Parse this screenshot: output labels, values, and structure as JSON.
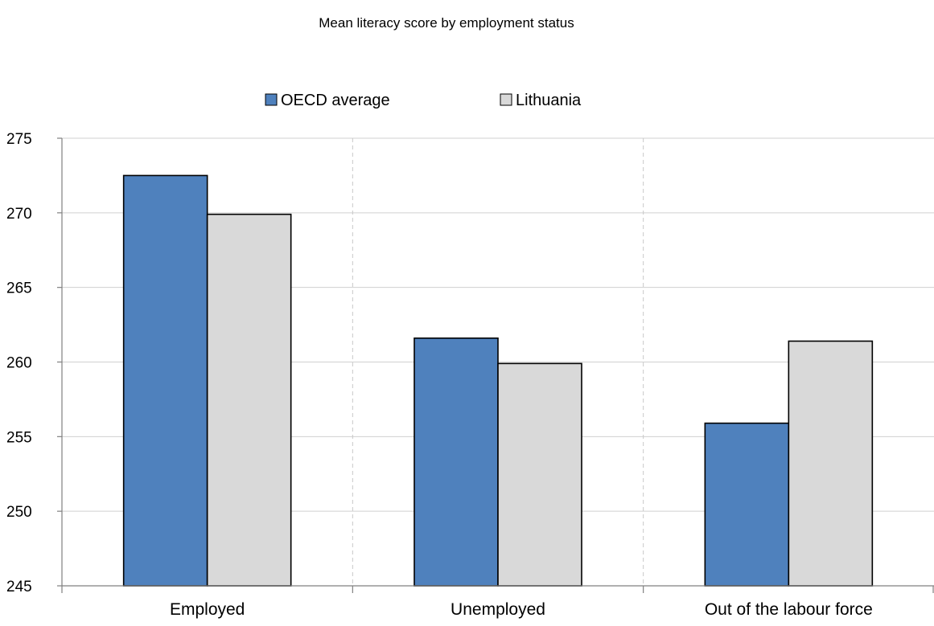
{
  "chart_data": {
    "type": "bar",
    "title": "Mean literacy score by employment status",
    "xlabel": "",
    "ylabel": "",
    "categories": [
      "Employed",
      "Unemployed",
      "Out of the labour force"
    ],
    "series": [
      {
        "name": "OECD average",
        "values": [
          272.5,
          261.6,
          255.9
        ],
        "color": "#4f81bd"
      },
      {
        "name": "Lithuania",
        "values": [
          269.9,
          259.9,
          261.4
        ],
        "color": "#d9d9d9"
      }
    ],
    "ylim": [
      245,
      275
    ],
    "yticks": [
      245,
      250,
      255,
      260,
      265,
      270,
      275
    ],
    "grid": {
      "horizontal": true,
      "vertical_category_separators": "dashed"
    },
    "legend_position": "top-center",
    "bar_edge_color": "#000000"
  }
}
